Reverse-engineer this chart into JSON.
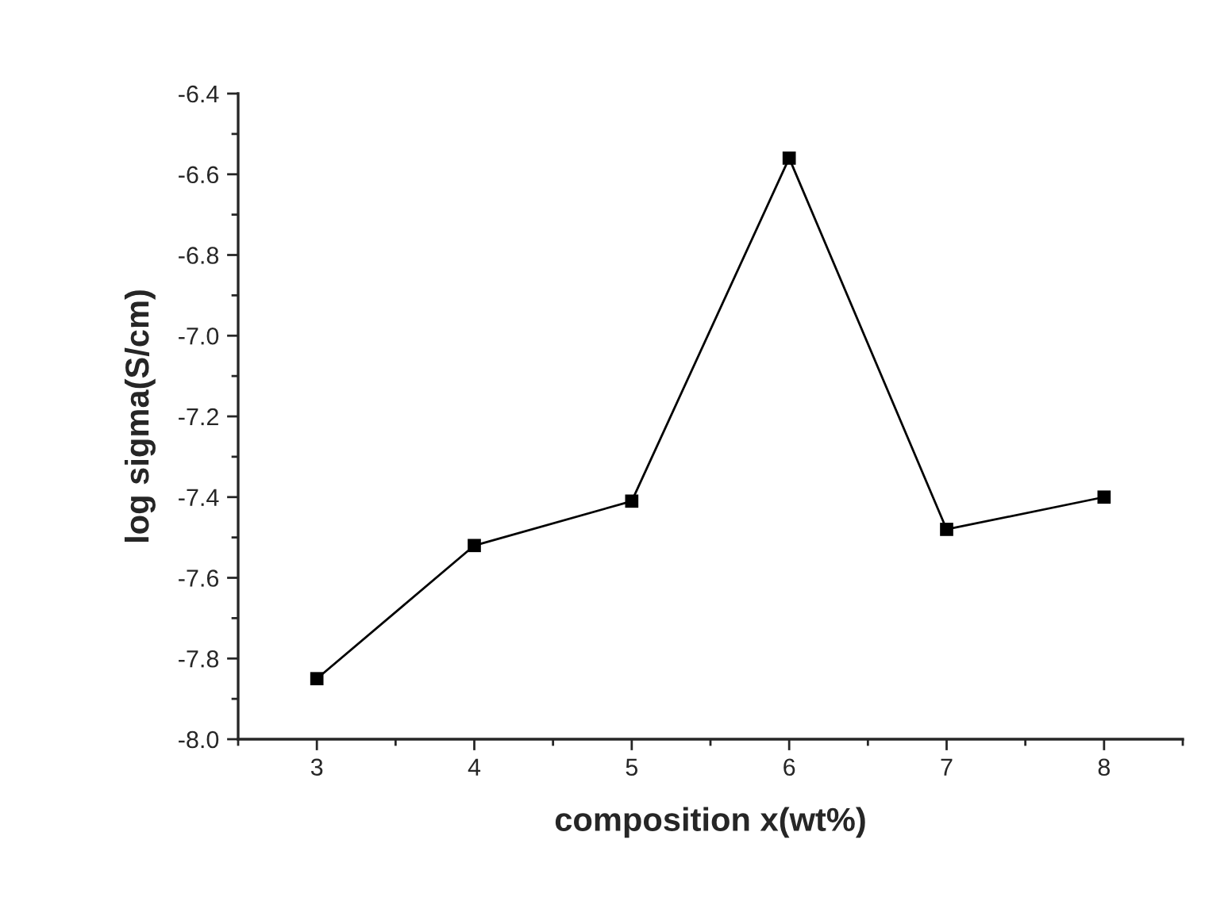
{
  "chart_data": {
    "type": "line",
    "xlabel": "composition x(wt%)",
    "ylabel": "log sigma(S/cm)",
    "x": [
      3,
      4,
      5,
      6,
      7,
      8
    ],
    "series": [
      {
        "color": "#000000",
        "values": [
          -7.85,
          -7.52,
          -7.41,
          -6.56,
          -7.48,
          -7.4
        ]
      }
    ],
    "xlim": [
      2.5,
      8.5
    ],
    "xticks": [
      3,
      4,
      5,
      6,
      7,
      8
    ],
    "ylim": [
      -8.0,
      -6.4
    ],
    "yticks": [
      {
        "value": -8.0,
        "label": "-8.0"
      },
      {
        "value": -7.8,
        "label": "-7.8"
      },
      {
        "value": -7.6,
        "label": "-7.6"
      },
      {
        "value": -7.4,
        "label": "-7.4"
      },
      {
        "value": -7.2,
        "label": "-7.2"
      },
      {
        "value": -7.0,
        "label": "-7.0"
      },
      {
        "value": -6.8,
        "label": "-6.8"
      },
      {
        "value": -6.6,
        "label": "-6.6"
      },
      {
        "value": -6.4,
        "label": "-6.4"
      }
    ],
    "marker": "square",
    "line_style": "solid",
    "grid": false,
    "legend": false
  }
}
